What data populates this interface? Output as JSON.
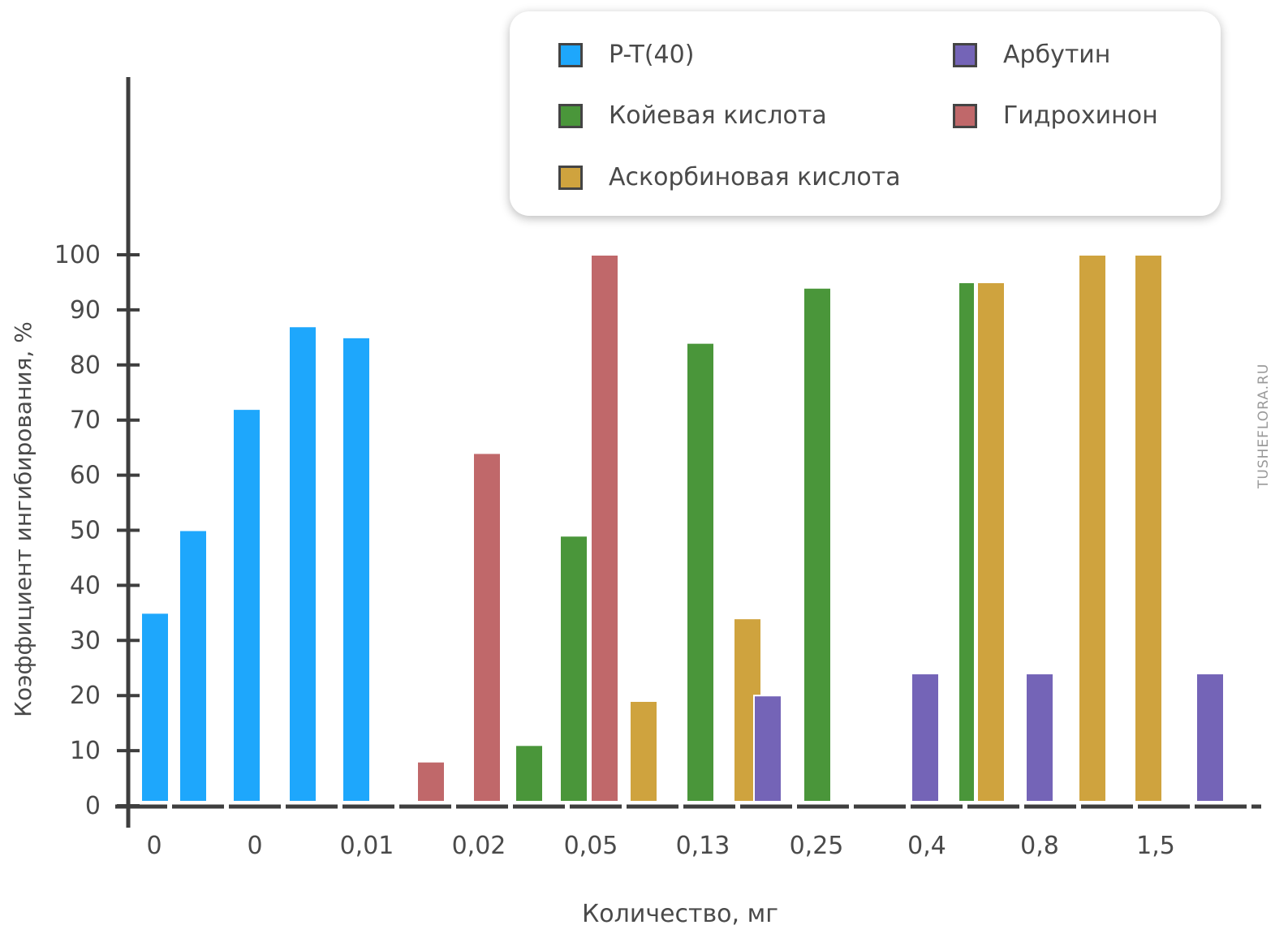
{
  "chart_data": {
    "type": "bar",
    "xlabel": "Количество, мг",
    "ylabel": "Коэффициент ингибирования, %",
    "ylim": [
      0,
      100
    ],
    "yticks": [
      0,
      10,
      20,
      30,
      40,
      50,
      60,
      70,
      80,
      90,
      100
    ],
    "xtick_labels": [
      "0",
      "0",
      "0,01",
      "0,02",
      "0,05",
      "0,13",
      "0,25",
      "0,4",
      "0,8",
      "1,5"
    ],
    "grid": false,
    "legend_position": "top-right",
    "series": [
      {
        "name": "P-T(40)",
        "color": "#1ea7fc",
        "values": [
          35,
          50,
          72,
          87,
          85
        ]
      },
      {
        "name": "Койевая кислота",
        "color": "#4a963a",
        "values": [
          11,
          49,
          84,
          94,
          95
        ]
      },
      {
        "name": "Аскорбиновая кислота",
        "color": "#cfa33e",
        "values": [
          19,
          34,
          95,
          100,
          100
        ]
      },
      {
        "name": "Арбутин",
        "color": "#7464b7",
        "values": [
          20,
          24,
          24,
          24
        ]
      },
      {
        "name": "Гидрохинон",
        "color": "#c0686a",
        "values": [
          8,
          64,
          100
        ]
      }
    ]
  },
  "watermark": "TUSHEFLORA.RU"
}
